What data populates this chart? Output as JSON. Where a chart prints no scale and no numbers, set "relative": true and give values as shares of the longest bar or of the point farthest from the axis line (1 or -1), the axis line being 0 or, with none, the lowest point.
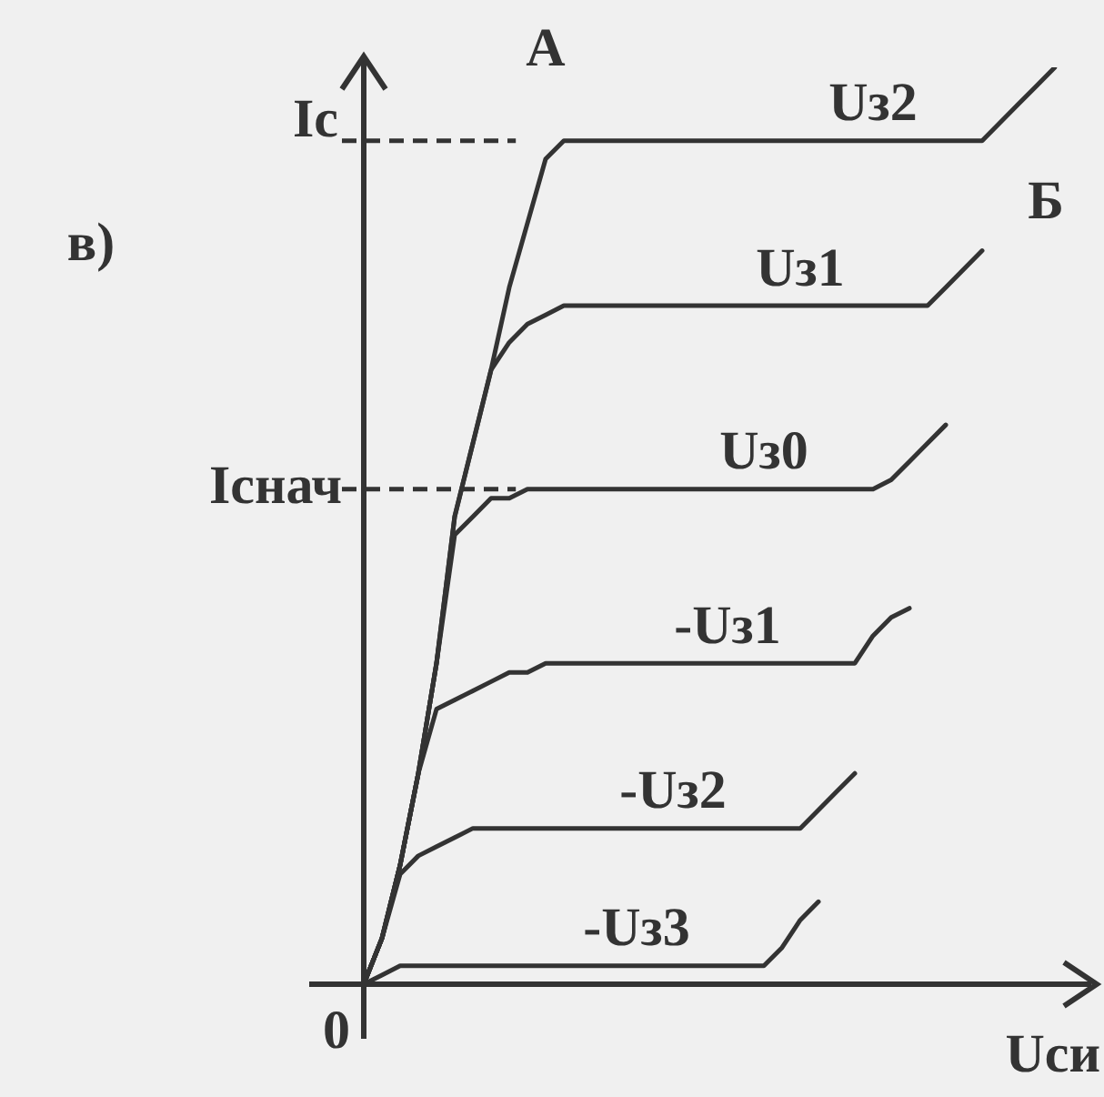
{
  "chart_data": {
    "type": "line",
    "relative": true,
    "xlabel": "Uси",
    "ylabel": "Iс",
    "categories": [
      null,
      null,
      null,
      null,
      null,
      null,
      null,
      null,
      null,
      null,
      null,
      null,
      null,
      null,
      null,
      null,
      null,
      null,
      null,
      null,
      null,
      null,
      null,
      null,
      null,
      null,
      null,
      null,
      null,
      null,
      null,
      null,
      null,
      null,
      null,
      null,
      null,
      null,
      null
    ],
    "series": [
      {
        "name": "Uз2",
        "color": "#333333",
        "values": [
          0,
          0.05,
          0.13,
          0.23,
          0.35,
          0.51,
          0.59,
          0.67,
          0.76,
          0.83,
          0.9,
          0.92,
          0.92,
          0.92,
          0.92,
          0.92,
          0.92,
          0.92,
          0.92,
          0.92,
          0.92,
          0.92,
          0.92,
          0.92,
          0.92,
          0.92,
          0.92,
          0.92,
          0.92,
          0.92,
          0.92,
          0.92,
          0.92,
          0.92,
          0.92,
          0.94,
          0.96,
          0.98,
          1
        ]
      },
      {
        "name": "Uз1",
        "color": "#333333",
        "values": [
          0,
          0.05,
          0.13,
          0.23,
          0.35,
          0.51,
          0.59,
          0.67,
          0.7,
          0.72,
          0.73,
          0.74,
          0.74,
          0.74,
          0.74,
          0.74,
          0.74,
          0.74,
          0.74,
          0.74,
          0.74,
          0.74,
          0.74,
          0.74,
          0.74,
          0.74,
          0.74,
          0.74,
          0.74,
          0.74,
          0.74,
          0.74,
          0.76,
          0.78,
          0.8,
          null,
          null,
          null,
          null
        ]
      },
      {
        "name": "Uз0",
        "color": "#333333",
        "values": [
          0,
          0.05,
          0.13,
          0.23,
          0.35,
          0.49,
          0.51,
          0.53,
          0.53,
          0.54,
          0.54,
          0.54,
          0.54,
          0.54,
          0.54,
          0.54,
          0.54,
          0.54,
          0.54,
          0.54,
          0.54,
          0.54,
          0.54,
          0.54,
          0.54,
          0.54,
          0.54,
          0.54,
          0.54,
          0.55,
          0.57,
          0.59,
          0.61,
          null,
          null,
          null,
          null,
          null,
          null
        ]
      },
      {
        "name": "-Uз1",
        "color": "#333333",
        "values": [
          0,
          0.05,
          0.13,
          0.23,
          0.3,
          0.31,
          0.32,
          0.33,
          0.34,
          0.34,
          0.35,
          0.35,
          0.35,
          0.35,
          0.35,
          0.35,
          0.35,
          0.35,
          0.35,
          0.35,
          0.35,
          0.35,
          0.35,
          0.35,
          0.35,
          0.35,
          0.35,
          0.35,
          0.38,
          0.4,
          0.41,
          null,
          null,
          null,
          null,
          null,
          null,
          null,
          null
        ]
      },
      {
        "name": "-Uз2",
        "color": "#333333",
        "values": [
          0,
          0.05,
          0.12,
          0.14,
          0.15,
          0.16,
          0.17,
          0.17,
          0.17,
          0.17,
          0.17,
          0.17,
          0.17,
          0.17,
          0.17,
          0.17,
          0.17,
          0.17,
          0.17,
          0.17,
          0.17,
          0.17,
          0.17,
          0.17,
          0.17,
          0.19,
          0.21,
          0.23,
          null,
          null,
          null,
          null,
          null,
          null,
          null,
          null,
          null,
          null,
          null
        ]
      },
      {
        "name": "-Uз3",
        "color": "#333333",
        "values": [
          0,
          0.01,
          0.02,
          0.02,
          0.02,
          0.02,
          0.02,
          0.02,
          0.02,
          0.02,
          0.02,
          0.02,
          0.02,
          0.02,
          0.02,
          0.02,
          0.02,
          0.02,
          0.02,
          0.02,
          0.02,
          0.02,
          0.02,
          0.04,
          0.07,
          0.09,
          null,
          null,
          null,
          null,
          null,
          null,
          null,
          null,
          null,
          null,
          null,
          null,
          null
        ]
      }
    ],
    "ref_lines": [
      {
        "axis": "y",
        "value": 0.54,
        "label": "Iснач"
      },
      {
        "axis": "y",
        "value": 0.92,
        "label": null
      }
    ],
    "annotations": [
      "А",
      "Б",
      "в)",
      "0"
    ],
    "legend": false,
    "marker": "none",
    "line_style": "solid"
  }
}
